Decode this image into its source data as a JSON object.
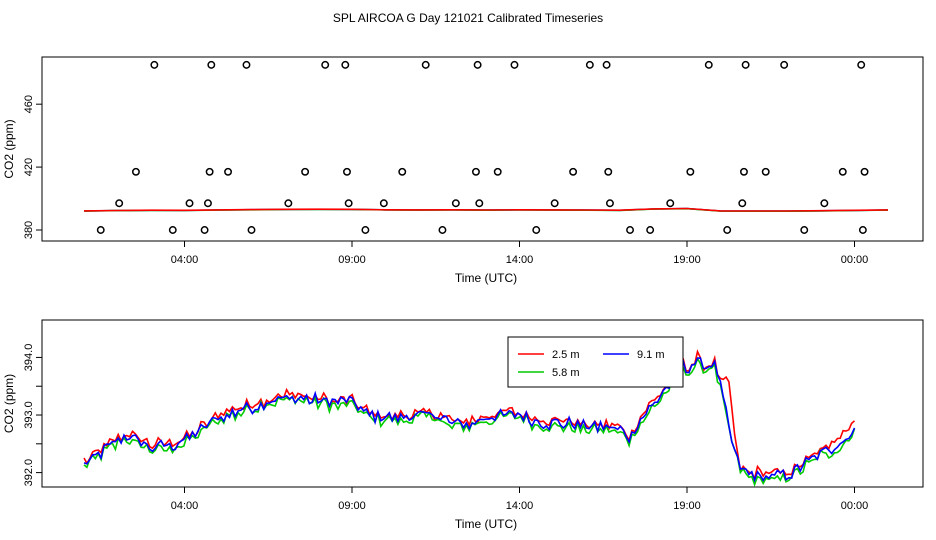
{
  "title": "SPL AIRCOA G  Day 121021  Calibrated Timeseries",
  "chart_data": [
    {
      "type": "scatter",
      "name": "top-panel",
      "xlabel": "Time (UTC)",
      "ylabel": "CO2 (ppm)",
      "xlim": [
        0,
        24
      ],
      "ylim": [
        373,
        490
      ],
      "xticks": [
        3,
        8,
        13,
        18,
        23
      ],
      "xtick_labels": [
        "04:00",
        "09:00",
        "14:00",
        "19:00",
        "00:00"
      ],
      "yticks": [
        380,
        420,
        460
      ],
      "ytick_labels": [
        "380",
        "420",
        "460"
      ],
      "outlier_points": {
        "x": [
          0.5,
          1.05,
          1.55,
          2.1,
          2.65,
          3.15,
          3.6,
          3.7,
          3.75,
          3.8,
          4.3,
          4.85,
          5.0,
          6.1,
          6.6,
          7.2,
          7.8,
          7.85,
          7.9,
          8.4,
          8.95,
          9.5,
          10.2,
          10.7,
          11.1,
          11.7,
          11.75,
          11.8,
          12.35,
          12.85,
          13.5,
          14.05,
          14.6,
          15.1,
          15.6,
          15.65,
          15.7,
          16.3,
          16.9,
          17.5,
          18.1,
          18.65,
          19.2,
          19.65,
          19.7,
          19.75,
          20.35,
          20.9,
          21.5,
          22.1,
          22.65,
          23.2,
          23.25,
          23.3
        ],
        "y": [
          380,
          397,
          417,
          485,
          380,
          397,
          380,
          397,
          417,
          485,
          417,
          485,
          380,
          397,
          417,
          485,
          485,
          417,
          397,
          380,
          397,
          417,
          485,
          380,
          397,
          417,
          485,
          397,
          417,
          485,
          380,
          397,
          417,
          485,
          485,
          417,
          397,
          380,
          380,
          397,
          417,
          485,
          380,
          397,
          417,
          485,
          417,
          485,
          380,
          397,
          417,
          485,
          380,
          417
        ]
      },
      "series": [
        {
          "name": "2.5 m",
          "color": "#ff0000"
        },
        {
          "name": "5.8 m",
          "color": "#00cc00"
        },
        {
          "name": "9.1 m",
          "color": "#0000ff"
        }
      ],
      "series_values": {
        "x": [
          0,
          1,
          2,
          3,
          4,
          5,
          6,
          7,
          8,
          9,
          10,
          11,
          12,
          13,
          14,
          15,
          16,
          17,
          18,
          19,
          20,
          21,
          22,
          23,
          24
        ],
        "y": [
          392.1,
          392.4,
          392.6,
          392.5,
          392.8,
          393.0,
          393.2,
          393.3,
          393.2,
          392.9,
          392.8,
          392.9,
          392.7,
          392.9,
          392.8,
          392.7,
          392.6,
          393.5,
          393.8,
          392.1,
          392.0,
          392.0,
          392.2,
          392.5,
          392.8
        ]
      }
    },
    {
      "type": "line",
      "name": "bottom-panel",
      "xlabel": "Time (UTC)",
      "ylabel": "CO2 (ppm)",
      "xlim": [
        0,
        24
      ],
      "ylim": [
        391.75,
        394.65
      ],
      "xticks": [
        3,
        8,
        13,
        18,
        23
      ],
      "xtick_labels": [
        "04:00",
        "09:00",
        "14:00",
        "19:00",
        "00:00"
      ],
      "yticks": [
        392.0,
        392.5,
        393.0,
        393.5,
        394.0
      ],
      "ytick_labels": [
        "392.0",
        "",
        "393.0",
        "",
        "394.0"
      ],
      "legend": {
        "position": "top-center",
        "entries": [
          "2.5 m",
          "9.1 m",
          "5.8 m"
        ]
      },
      "base_curve": {
        "x": [
          0,
          0.5,
          1.0,
          1.3,
          1.6,
          2.0,
          2.5,
          3.0,
          3.5,
          4.0,
          4.5,
          5.0,
          5.5,
          6.0,
          6.5,
          7.0,
          7.5,
          8.0,
          8.5,
          9.0,
          9.5,
          10.0,
          10.5,
          11.0,
          11.5,
          12.0,
          12.5,
          13.0,
          13.5,
          14.0,
          14.5,
          15.0,
          15.5,
          16.0,
          16.3,
          16.6,
          17.0,
          17.5,
          17.8,
          18.0,
          18.3,
          18.6,
          18.8,
          19.0,
          19.3,
          19.6,
          20.0,
          20.5,
          21.0,
          21.3,
          21.6,
          22.0,
          22.5,
          23.0
        ],
        "y": [
          392.15,
          392.35,
          392.55,
          392.65,
          392.55,
          392.45,
          392.45,
          392.55,
          392.75,
          392.95,
          393.05,
          393.15,
          393.25,
          393.3,
          393.3,
          393.25,
          393.2,
          393.25,
          393.0,
          392.95,
          392.95,
          393.0,
          393.0,
          392.85,
          392.85,
          392.95,
          393.0,
          393.0,
          392.9,
          392.85,
          392.85,
          392.8,
          392.8,
          392.75,
          392.6,
          392.9,
          393.2,
          393.55,
          393.9,
          393.75,
          393.95,
          393.8,
          393.95,
          393.5,
          392.65,
          392.05,
          391.95,
          391.95,
          391.95,
          392.05,
          392.2,
          392.35,
          392.45,
          392.75
        ]
      },
      "series": [
        {
          "name": "2.5 m",
          "color": "#ff0000",
          "offset": 0.04
        },
        {
          "name": "5.8 m",
          "color": "#00cc00",
          "offset": -0.05
        },
        {
          "name": "9.1 m",
          "color": "#0000ff",
          "offset": 0.0
        }
      ],
      "annotation": "2.5 m spike near 19:20 to about 394.6"
    }
  ]
}
